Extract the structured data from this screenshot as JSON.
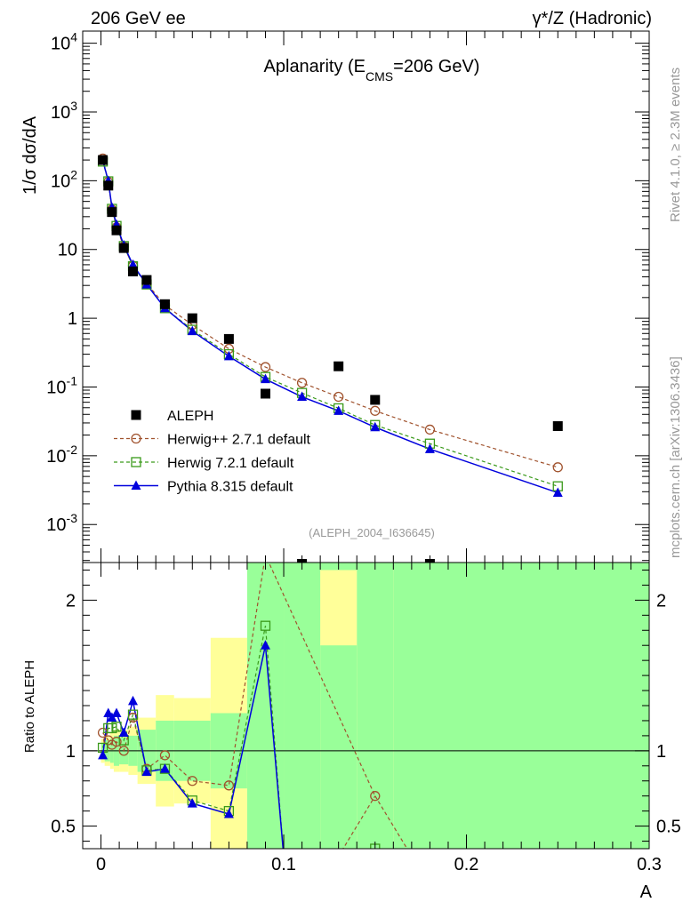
{
  "header": {
    "left": "206 GeV ee",
    "right": "γ*/Z (Hadronic)"
  },
  "side_text": {
    "version": "Rivet 4.1.0, ≥ 2.3M events",
    "source": "mcplots.cern.ch [arXiv:1306.3436]"
  },
  "analysis_id": "(ALEPH_2004_I636645)",
  "colors": {
    "data": "#000000",
    "herwigpp": "#a0522d",
    "herwig7": "#3a9a1a",
    "pythia": "#0000dd",
    "band_green": "#99ff99",
    "band_yellow": "#ffff99"
  },
  "chart_data": [
    {
      "type": "scatter",
      "title": "Aplanarity (E_CMS=206 GeV)",
      "title_parts": {
        "main": "Aplanarity (E",
        "sub": "CMS",
        "tail": "=206 GeV)"
      },
      "ylabel": "1/σ  dσ/dA",
      "yscale": "log",
      "xlim": [
        -0.01,
        0.3
      ],
      "ylim": [
        0.00028,
        15000
      ],
      "yticks": [
        {
          "v": 0.001,
          "label": "10",
          "exp": "-3"
        },
        {
          "v": 0.01,
          "label": "10",
          "exp": "-2"
        },
        {
          "v": 0.1,
          "label": "10",
          "exp": "-1"
        },
        {
          "v": 1,
          "label": "1",
          "exp": ""
        },
        {
          "v": 10,
          "label": "10",
          "exp": ""
        },
        {
          "v": 100,
          "label": "10",
          "exp": "2"
        },
        {
          "v": 1000,
          "label": "10",
          "exp": "3"
        },
        {
          "v": 10000,
          "label": "10",
          "exp": "4"
        }
      ],
      "legend": [
        {
          "key": "data",
          "label": "ALEPH"
        },
        {
          "key": "herwigpp",
          "label": "Herwig++ 2.7.1 default"
        },
        {
          "key": "herwig7",
          "label": "Herwig 7.2.1 default"
        },
        {
          "key": "pythia",
          "label": "Pythia 8.315 default"
        }
      ],
      "data": {
        "name": "ALEPH",
        "x": [
          0.001,
          0.004,
          0.006,
          0.0085,
          0.0125,
          0.0175,
          0.025,
          0.035,
          0.05,
          0.07,
          0.09,
          0.11,
          0.13,
          0.15,
          0.18,
          0.25
        ],
        "y": [
          200,
          85,
          35,
          19,
          10.5,
          4.8,
          3.6,
          1.6,
          1.0,
          0.5,
          0.08,
          0.00025,
          0.2,
          0.065,
          0.00025,
          0.027
        ]
      },
      "series": [
        {
          "name": "Herwig++ 2.7.1 default",
          "key": "herwigpp",
          "x": [
            0.001,
            0.004,
            0.006,
            0.0085,
            0.0125,
            0.0175,
            0.025,
            0.035,
            0.05,
            0.07,
            0.09,
            0.11,
            0.13,
            0.15,
            0.18,
            0.25
          ],
          "y": [
            210,
            96,
            38,
            21,
            11.0,
            5.8,
            3.2,
            1.55,
            0.8,
            0.36,
            0.195,
            0.115,
            0.072,
            0.045,
            0.024,
            0.0068
          ]
        },
        {
          "name": "Herwig 7.2.1 default",
          "key": "herwig7",
          "x": [
            0.001,
            0.004,
            0.006,
            0.0085,
            0.0125,
            0.0175,
            0.025,
            0.035,
            0.05,
            0.07,
            0.09,
            0.11,
            0.13,
            0.15,
            0.18,
            0.25
          ],
          "y": [
            190,
            98,
            39,
            22,
            11.2,
            5.7,
            3.1,
            1.4,
            0.68,
            0.3,
            0.14,
            0.082,
            0.049,
            0.028,
            0.015,
            0.0036
          ]
        },
        {
          "name": "Pythia 8.315 default",
          "key": "pythia",
          "x": [
            0.001,
            0.004,
            0.006,
            0.0085,
            0.0125,
            0.0175,
            0.025,
            0.035,
            0.05,
            0.07,
            0.09,
            0.11,
            0.13,
            0.15,
            0.18,
            0.25
          ],
          "y": [
            195,
            100,
            41,
            23,
            11.5,
            6.0,
            3.1,
            1.4,
            0.65,
            0.28,
            0.13,
            0.072,
            0.045,
            0.026,
            0.0125,
            0.0029
          ]
        }
      ]
    },
    {
      "type": "line",
      "title": "",
      "xlabel": "A",
      "ylabel": "Ratio to ALEPH",
      "xlim": [
        -0.01,
        0.3
      ],
      "ylim": [
        0.35,
        2.25
      ],
      "xticks": [
        {
          "v": 0,
          "label": "0"
        },
        {
          "v": 0.1,
          "label": "0.1"
        },
        {
          "v": 0.2,
          "label": "0.2"
        },
        {
          "v": 0.3,
          "label": "0.3"
        }
      ],
      "yticks": [
        {
          "v": 0.5,
          "label": "0.5"
        },
        {
          "v": 1,
          "label": "1"
        },
        {
          "v": 2,
          "label": "2"
        }
      ],
      "bands": [
        {
          "x0": 0.0,
          "x1": 0.002,
          "g0": 0.95,
          "g1": 1.05,
          "y0": 0.92,
          "y1": 1.08
        },
        {
          "x0": 0.002,
          "x1": 0.005,
          "g0": 0.93,
          "g1": 1.07,
          "y0": 0.9,
          "y1": 1.1
        },
        {
          "x0": 0.005,
          "x1": 0.007,
          "g0": 0.92,
          "g1": 1.08,
          "y0": 0.88,
          "y1": 1.12
        },
        {
          "x0": 0.007,
          "x1": 0.01,
          "g0": 0.9,
          "g1": 1.1,
          "y0": 0.86,
          "y1": 1.14
        },
        {
          "x0": 0.01,
          "x1": 0.015,
          "g0": 0.91,
          "g1": 1.09,
          "y0": 0.86,
          "y1": 1.14
        },
        {
          "x0": 0.015,
          "x1": 0.02,
          "g0": 0.9,
          "g1": 1.1,
          "y0": 0.84,
          "y1": 1.16
        },
        {
          "x0": 0.02,
          "x1": 0.03,
          "g0": 0.86,
          "g1": 1.14,
          "y0": 0.78,
          "y1": 1.22
        },
        {
          "x0": 0.03,
          "x1": 0.04,
          "g0": 0.8,
          "g1": 1.2,
          "y0": 0.63,
          "y1": 1.37
        },
        {
          "x0": 0.04,
          "x1": 0.06,
          "g0": 0.8,
          "g1": 1.2,
          "y0": 0.65,
          "y1": 1.35
        },
        {
          "x0": 0.06,
          "x1": 0.08,
          "g0": 0.75,
          "g1": 1.25,
          "y0": 0.3,
          "y1": 1.75
        },
        {
          "x0": 0.08,
          "x1": 0.1,
          "g0": 0.3,
          "g1": 2.3,
          "y0": 0.3,
          "y1": 2.3
        },
        {
          "x0": 0.1,
          "x1": 0.12,
          "g0": 0.3,
          "g1": 2.3,
          "y0": 0.3,
          "y1": 2.3
        },
        {
          "x0": 0.12,
          "x1": 0.14,
          "g0": 0.3,
          "g1": 2.3,
          "y0": 0.3,
          "y1": 2.3
        },
        {
          "x0": 0.14,
          "x1": 0.16,
          "g0": 0.3,
          "g1": 2.3,
          "y0": 0.3,
          "y1": 2.3
        },
        {
          "x0": 0.16,
          "x1": 0.2,
          "g0": 0.3,
          "g1": 2.3,
          "y0": 0.3,
          "y1": 2.3
        },
        {
          "x0": 0.2,
          "x1": 0.3,
          "g0": 0.3,
          "g1": 2.3,
          "y0": 0.3,
          "y1": 2.3
        }
      ],
      "yellow_patch": {
        "x0": 0.12,
        "x1": 0.14,
        "y0": 1.7,
        "y1": 2.2
      },
      "series": [
        {
          "name": "Herwig++ 2.7.1 default",
          "key": "herwigpp",
          "x": [
            0.001,
            0.004,
            0.006,
            0.0085,
            0.0125,
            0.0175,
            0.025,
            0.035,
            0.05,
            0.07,
            0.09,
            0.15
          ],
          "y": [
            1.12,
            1.07,
            1.04,
            1.06,
            1.0,
            1.22,
            0.88,
            0.97,
            0.8,
            0.77,
            2.3,
            0.7
          ],
          "tail": {
            "from": [
              0.15,
              0.7
            ],
            "to": [
              0.17,
              0.3
            ]
          },
          "head": {
            "from": [
              0.13,
              0.3
            ],
            "to": [
              0.15,
              0.7
            ]
          }
        },
        {
          "name": "Herwig 7.2.1 default",
          "key": "herwig7",
          "x": [
            0.001,
            0.004,
            0.006,
            0.0085,
            0.0125,
            0.0175,
            0.025,
            0.035,
            0.05,
            0.07,
            0.09,
            0.15
          ],
          "y": [
            1.02,
            1.15,
            1.15,
            1.16,
            1.07,
            1.24,
            0.87,
            0.88,
            0.67,
            0.6,
            1.83,
            0.35
          ],
          "break_after": 9
        },
        {
          "name": "Pythia 8.315 default",
          "key": "pythia",
          "x": [
            0.001,
            0.004,
            0.006,
            0.0085,
            0.0125,
            0.0175,
            0.025,
            0.035,
            0.05,
            0.07,
            0.09,
            0.1
          ],
          "y": [
            0.97,
            1.25,
            1.22,
            1.25,
            1.12,
            1.33,
            0.86,
            0.88,
            0.65,
            0.58,
            1.7,
            0.3
          ]
        }
      ]
    }
  ]
}
